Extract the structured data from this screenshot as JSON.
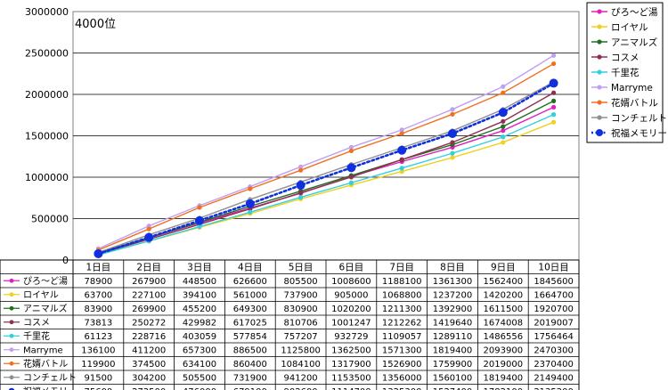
{
  "chart_data": {
    "type": "line",
    "annotation": "4000位",
    "ylim": [
      0,
      3000000
    ],
    "y_ticks": [
      0,
      500000,
      1000000,
      1500000,
      2000000,
      2500000,
      3000000
    ],
    "categories": [
      "1日目",
      "2日目",
      "3日目",
      "4日目",
      "5日目",
      "6日目",
      "7日目",
      "8日目",
      "9日目",
      "10日目"
    ],
    "grid": true,
    "legend_position": "right",
    "series": [
      {
        "name": "ぴろ〜ど湯",
        "color": "#e020c0",
        "values": [
          78900,
          267900,
          448500,
          626600,
          805500,
          1008600,
          1188100,
          1361300,
          1562400,
          1845600
        ]
      },
      {
        "name": "ロイヤル",
        "color": "#f0d020",
        "values": [
          63700,
          227100,
          394100,
          561000,
          737900,
          905000,
          1068800,
          1237200,
          1420200,
          1664700
        ]
      },
      {
        "name": "アニマルズ",
        "color": "#207020",
        "values": [
          83900,
          269900,
          455200,
          649300,
          830900,
          1020200,
          1211300,
          1392900,
          1611500,
          1920700
        ]
      },
      {
        "name": "コスメ",
        "color": "#903050",
        "values": [
          73813,
          250272,
          429982,
          617025,
          810706,
          1001247,
          1212262,
          1419640,
          1674008,
          2019007
        ]
      },
      {
        "name": "千里花",
        "color": "#30d0e0",
        "values": [
          61123,
          228716,
          403059,
          577854,
          757207,
          932729,
          1109057,
          1289110,
          1486556,
          1756464
        ]
      },
      {
        "name": "Marryme",
        "color": "#c0a0f0",
        "values": [
          136100,
          411200,
          657300,
          886500,
          1125800,
          1362500,
          1571300,
          1819400,
          2093900,
          2470300
        ]
      },
      {
        "name": "花婿バトル",
        "color": "#f07020",
        "values": [
          119900,
          374500,
          634100,
          860400,
          1084100,
          1317900,
          1526900,
          1759900,
          2019000,
          2370400
        ]
      },
      {
        "name": "コンチェルト",
        "color": "#909090",
        "values": [
          91500,
          304200,
          505500,
          731900,
          941200,
          1153500,
          1356000,
          1560100,
          1819400,
          2149400
        ]
      },
      {
        "name": "祝福メモリー",
        "color": "#1030e0",
        "style": "dotted",
        "marker": "large",
        "values": [
          75600,
          272500,
          476000,
          679100,
          902600,
          1114700,
          1325300,
          1527400,
          1782100,
          2135200
        ]
      }
    ]
  }
}
